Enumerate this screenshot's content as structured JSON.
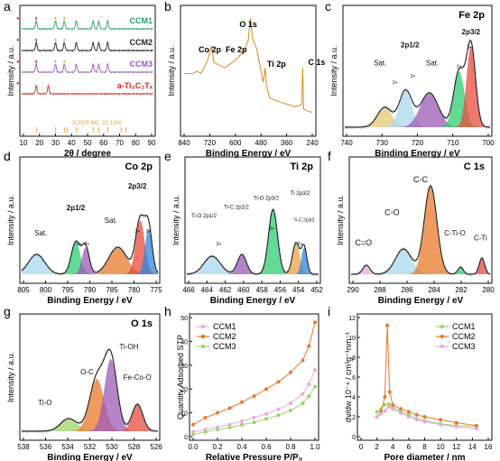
{
  "figure": {
    "panels": [
      {
        "id": "a",
        "letter": "a",
        "title": "",
        "xlabel": "2θ / degree",
        "ylabel": "Intensity / a.u.",
        "xticks": [
          "10",
          "20",
          "30",
          "40",
          "50",
          "60",
          "70",
          "80",
          "90"
        ],
        "legend": [
          "CCM1",
          "CCM2",
          "CCM3",
          "a-Ti₃C₂Tₓ"
        ],
        "ref": "JCPDS NO. 22-1086"
      },
      {
        "id": "b",
        "letter": "b",
        "title": "",
        "xlabel": "Binding Energy / eV",
        "ylabel": "Intensity / a.u.",
        "xticks": [
          "840",
          "720",
          "600",
          "480",
          "360",
          "240"
        ],
        "peaks": [
          "O 1s",
          "Co 2p",
          "Fe 2p",
          "Ti 2p",
          "C 1s"
        ]
      },
      {
        "id": "c",
        "letter": "c",
        "title": "Fe 2p",
        "xlabel": "Binding Energy / eV",
        "ylabel": "Intensity / a.u.",
        "xticks": [
          "740",
          "730",
          "720",
          "710",
          "700"
        ],
        "peaks": [
          "2p3/2",
          "2p1/2",
          "Sat.",
          "Sat.",
          "3+",
          "2+",
          "2+",
          "3+"
        ]
      },
      {
        "id": "d",
        "letter": "d",
        "title": "Co 2p",
        "xlabel": "Binding Energy / eV",
        "ylabel": "Intensity / a.u.",
        "xticks": [
          "805",
          "800",
          "795",
          "790",
          "785",
          "780",
          "775"
        ],
        "peaks": [
          "2p1/2",
          "2p3/2",
          "Sat.",
          "Sat.",
          "3+",
          "2+",
          "3+",
          "2+"
        ]
      },
      {
        "id": "e",
        "letter": "e",
        "title": "Ti 2p",
        "xlabel": "Binding Energy / eV",
        "ylabel": "Intensity / a.u.",
        "xticks": [
          "466",
          "464",
          "462",
          "460",
          "458",
          "456",
          "454",
          "452"
        ],
        "peaks": [
          "Ti-O 2p1/2",
          "Ti-C 2p1/2",
          "Ti-O 2p3/2",
          "Ti 2p3/2",
          "Ti-C 2p3/2",
          "3+",
          "3+",
          "2+"
        ]
      },
      {
        "id": "f",
        "letter": "f",
        "title": "C 1s",
        "xlabel": "Binding Energy / eV",
        "ylabel": "Intensity / a.u.",
        "xticks": [
          "290",
          "288",
          "286",
          "284",
          "282",
          "280"
        ],
        "peaks": [
          "C-C",
          "C-O",
          "C=O",
          "C-Ti-O",
          "C-Ti"
        ]
      },
      {
        "id": "g",
        "letter": "g",
        "title": "O 1s",
        "xlabel": "Binding Energy / eV",
        "ylabel": "Intensity / a.u.",
        "xticks": [
          "538",
          "536",
          "534",
          "532",
          "530",
          "528",
          "526"
        ],
        "peaks": [
          "Ti-OH",
          "O-C",
          "Fe-Co-O",
          "Ti-O"
        ]
      },
      {
        "id": "h",
        "letter": "h",
        "title": "",
        "xlabel": "Relative Pressure P/P₀",
        "ylabel": "Quantity Adsorbed STP",
        "xticks": [
          "0.0",
          "0.2",
          "0.4",
          "0.6",
          "0.8",
          "1.0"
        ],
        "yticks": [
          "0",
          "10",
          "20",
          "30",
          "40",
          "50"
        ],
        "legend": [
          "CCM1",
          "CCM2",
          "CCM3"
        ]
      },
      {
        "id": "i",
        "letter": "i",
        "title": "",
        "xlabel": "Pore diameter / nm",
        "ylabel": "dv/dw 10⁻⁴ / cm³g⁻¹nm⁻¹",
        "xticks": [
          "0",
          "2",
          "4",
          "6",
          "8",
          "10",
          "12",
          "14",
          "16"
        ],
        "yticks": [
          "0",
          "2",
          "4",
          "6",
          "8",
          "10",
          "12"
        ],
        "legend": [
          "CCM1",
          "CCM2",
          "CCM3"
        ]
      }
    ]
  },
  "colors": {
    "ccm1": "#2a9d72",
    "ccm2": "#222222",
    "ccm3": "#9b59b6",
    "ti3c2": "#d62728",
    "ref": "#e8a33d",
    "survey": "#e08a1a",
    "fit": "#111111",
    "h_ccm1": "#f0a8d8",
    "h_ccm2": "#e8792b",
    "h_ccm3": "#9fd36a",
    "i_ccm1": "#9fd36a",
    "i_ccm2": "#e8792b",
    "i_ccm3": "#e6a8e0"
  },
  "chart_data": [
    {
      "type": "line",
      "panel": "a",
      "x_unit": "2θ / degree",
      "xlim": [
        5,
        90
      ],
      "series": [
        {
          "name": "CCM1",
          "peaks_x": [
            6.5,
            18,
            30,
            35.5,
            43,
            53.5,
            57,
            62.5
          ]
        },
        {
          "name": "CCM2",
          "peaks_x": [
            6.5,
            18,
            30,
            35.5,
            43,
            53.5,
            57,
            62.5
          ]
        },
        {
          "name": "CCM3",
          "peaks_x": [
            6.5,
            18,
            30,
            35.5,
            43,
            53.5,
            57,
            62.5
          ]
        },
        {
          "name": "a-Ti₃C₂Tₓ",
          "peaks_x": [
            6.5,
            18,
            25.5
          ]
        }
      ],
      "reference": {
        "name": "JCPDS NO. 22-1086",
        "x": [
          18.3,
          30.1,
          35.5,
          37.1,
          43.1,
          53.5,
          57,
          62.6,
          71,
          74
        ]
      }
    },
    {
      "type": "line",
      "panel": "b",
      "xlim": [
        840,
        240
      ],
      "x": [
        840,
        800,
        780,
        760,
        730,
        712,
        700,
        650,
        600,
        560,
        540,
        530,
        520,
        500,
        470,
        460,
        455,
        440,
        400,
        320,
        290,
        285,
        280,
        260,
        240
      ],
      "y": [
        0.5,
        0.5,
        0.52,
        0.5,
        0.62,
        0.75,
        0.6,
        0.55,
        0.62,
        0.7,
        0.8,
        1.0,
        0.82,
        0.72,
        0.42,
        0.55,
        0.4,
        0.28,
        0.25,
        0.2,
        0.22,
        0.55,
        0.18,
        0.16,
        0.15
      ]
    },
    {
      "type": "line",
      "panel": "h",
      "xlim": [
        0,
        1
      ],
      "ylim": [
        0,
        50
      ],
      "series": [
        {
          "name": "CCM1",
          "x": [
            0,
            0.1,
            0.2,
            0.3,
            0.4,
            0.5,
            0.6,
            0.7,
            0.8,
            0.9,
            0.95,
            1.0
          ],
          "y": [
            2,
            3,
            4,
            5,
            6.5,
            8,
            9.5,
            11.5,
            14,
            18,
            22,
            28
          ]
        },
        {
          "name": "CCM2",
          "x": [
            0,
            0.1,
            0.2,
            0.3,
            0.4,
            0.5,
            0.6,
            0.7,
            0.8,
            0.9,
            0.95,
            1.0
          ],
          "y": [
            5,
            8,
            10,
            12,
            14.5,
            17,
            20,
            23,
            27,
            32,
            38,
            48
          ]
        },
        {
          "name": "CCM3",
          "x": [
            0,
            0.1,
            0.2,
            0.3,
            0.4,
            0.5,
            0.6,
            0.7,
            0.8,
            0.9,
            0.95,
            1.0
          ],
          "y": [
            1,
            2,
            3,
            3.8,
            5,
            6,
            7.5,
            9,
            11,
            14,
            17,
            21
          ]
        }
      ]
    },
    {
      "type": "line",
      "panel": "i",
      "xlim": [
        0,
        16
      ],
      "ylim": [
        0,
        12
      ],
      "series": [
        {
          "name": "CCM1",
          "x": [
            2,
            2.5,
            3,
            3.5,
            4,
            5,
            6,
            7,
            8,
            10,
            12,
            14.5
          ],
          "y": [
            2.5,
            2.8,
            3.2,
            3.3,
            3.0,
            2.5,
            2.2,
            1.8,
            1.6,
            1.3,
            1.1,
            1.0
          ]
        },
        {
          "name": "CCM2",
          "x": [
            2,
            2.5,
            3,
            3.3,
            3.6,
            4,
            5,
            6,
            7,
            8,
            10,
            12,
            14.5
          ],
          "y": [
            2,
            2.5,
            4,
            11.2,
            4.5,
            3.2,
            2.8,
            2.5,
            2.2,
            2.0,
            1.7,
            1.4,
            1.1
          ]
        },
        {
          "name": "CCM3",
          "x": [
            2,
            2.5,
            3,
            3.5,
            4,
            5,
            6,
            7,
            8,
            10,
            12,
            14.5
          ],
          "y": [
            2,
            2.3,
            2.6,
            3.0,
            2.8,
            2.4,
            2.0,
            1.7,
            1.5,
            1.2,
            1.0,
            0.8
          ]
        }
      ]
    }
  ]
}
